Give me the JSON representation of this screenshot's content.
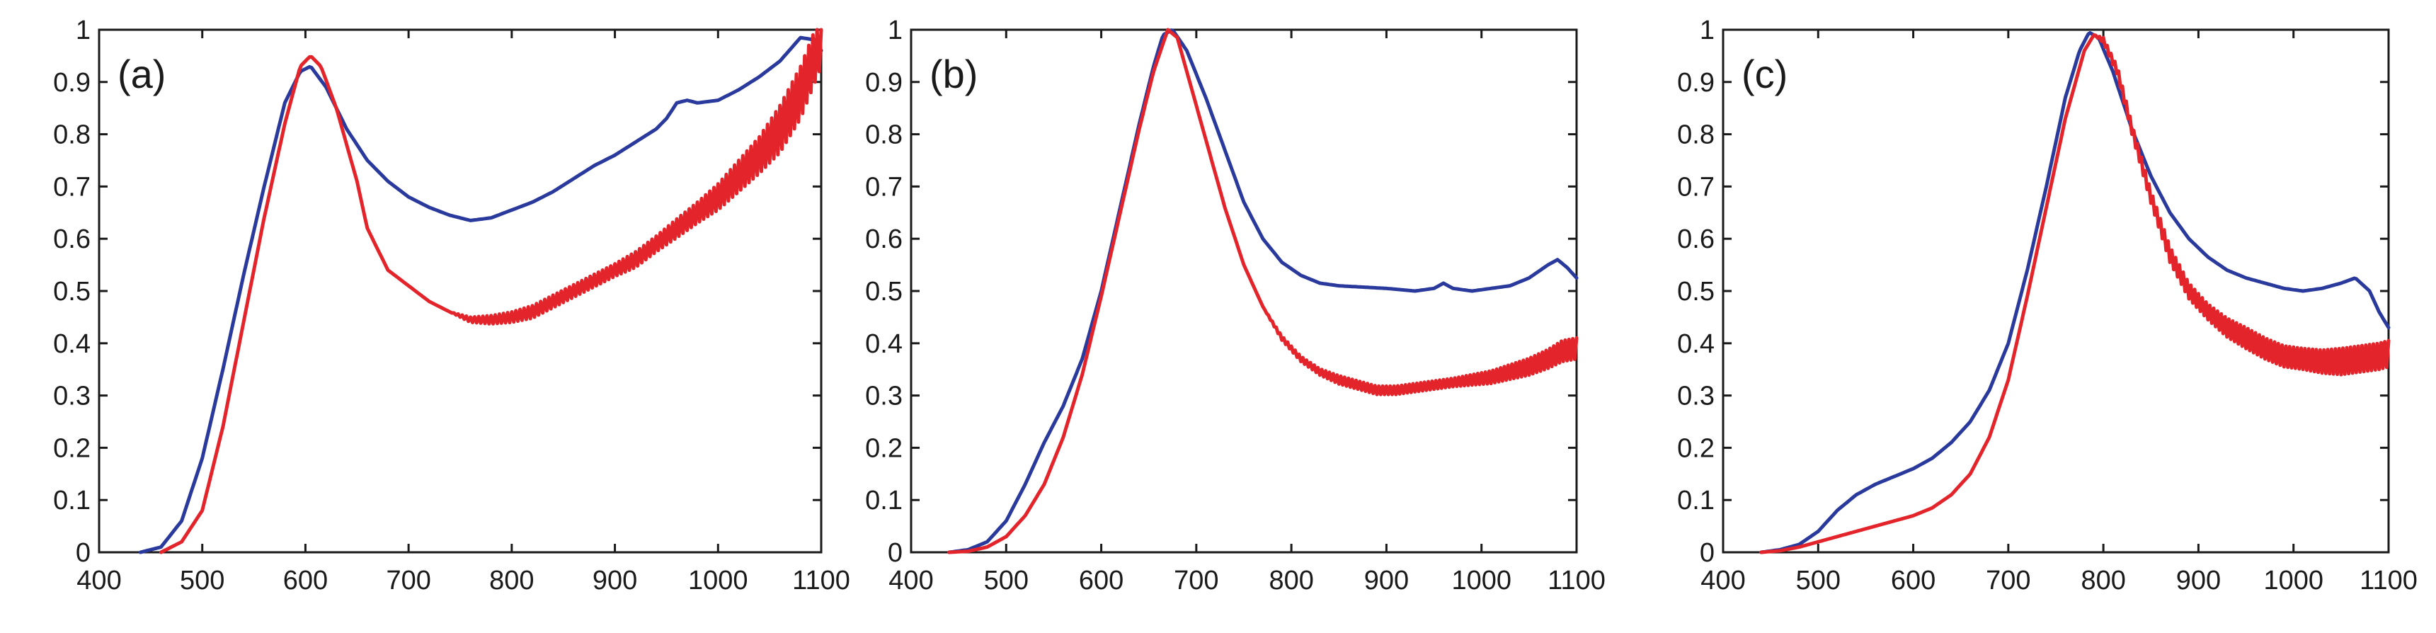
{
  "chart_data": [
    {
      "type": "line",
      "panel_label": "(a)",
      "title": "",
      "xlabel": "",
      "ylabel": "",
      "xlim": [
        400,
        1100
      ],
      "ylim": [
        0,
        1
      ],
      "x_ticks": [
        400,
        500,
        600,
        700,
        800,
        900,
        1000,
        1100
      ],
      "x_tick_labels": [
        "400",
        "500",
        "600",
        "700",
        "800",
        "900",
        "1000",
        "1100"
      ],
      "y_ticks": [
        0,
        0.1,
        0.2,
        0.3,
        0.4,
        0.5,
        0.6,
        0.7,
        0.8,
        0.9,
        1
      ],
      "y_tick_labels": [
        "0",
        "0.1",
        "0.2",
        "0.3",
        "0.4",
        "0.5",
        "0.6",
        "0.7",
        "0.8",
        "0.9",
        "1"
      ],
      "grid": false,
      "series": [
        {
          "name": "blue",
          "color": "#2a3a9c",
          "x": [
            440,
            460,
            480,
            500,
            520,
            540,
            560,
            580,
            595,
            605,
            620,
            640,
            660,
            680,
            700,
            720,
            740,
            760,
            780,
            800,
            820,
            840,
            860,
            880,
            900,
            920,
            940,
            950,
            960,
            970,
            980,
            1000,
            1020,
            1040,
            1060,
            1080,
            1095,
            1100
          ],
          "y": [
            0.0,
            0.01,
            0.06,
            0.18,
            0.35,
            0.53,
            0.7,
            0.86,
            0.92,
            0.93,
            0.89,
            0.81,
            0.75,
            0.71,
            0.68,
            0.66,
            0.645,
            0.635,
            0.64,
            0.655,
            0.67,
            0.69,
            0.715,
            0.74,
            0.76,
            0.785,
            0.81,
            0.83,
            0.86,
            0.865,
            0.86,
            0.865,
            0.885,
            0.91,
            0.94,
            0.985,
            0.98,
            0.96
          ]
        },
        {
          "name": "red",
          "color": "#e3242b",
          "x": [
            460,
            480,
            500,
            520,
            540,
            560,
            580,
            595,
            605,
            615,
            630,
            650,
            660,
            680,
            700,
            720,
            740,
            760,
            780,
            800,
            820,
            840,
            860,
            880,
            900,
            920,
            940,
            960,
            980,
            1000,
            1020,
            1040,
            1060,
            1080,
            1100
          ],
          "y": [
            0.0,
            0.02,
            0.08,
            0.24,
            0.44,
            0.64,
            0.82,
            0.93,
            0.95,
            0.93,
            0.85,
            0.71,
            0.62,
            0.54,
            0.51,
            0.48,
            0.46,
            0.445,
            0.445,
            0.45,
            0.46,
            0.48,
            0.5,
            0.52,
            0.54,
            0.56,
            0.59,
            0.62,
            0.65,
            0.68,
            0.72,
            0.76,
            0.81,
            0.88,
            0.98
          ],
          "noise": [
            0,
            0,
            0,
            0,
            0,
            0,
            0,
            0,
            0,
            0,
            0,
            0,
            0,
            0,
            0,
            0,
            0,
            0.005,
            0.008,
            0.01,
            0.012,
            0.012,
            0.012,
            0.012,
            0.012,
            0.015,
            0.015,
            0.018,
            0.02,
            0.025,
            0.03,
            0.035,
            0.045,
            0.05,
            0.05
          ]
        }
      ]
    },
    {
      "type": "line",
      "panel_label": "(b)",
      "title": "",
      "xlabel": "",
      "ylabel": "",
      "xlim": [
        400,
        1100
      ],
      "ylim": [
        0,
        1
      ],
      "x_ticks": [
        400,
        500,
        600,
        700,
        800,
        900,
        1000,
        1100
      ],
      "x_tick_labels": [
        "400",
        "500",
        "600",
        "700",
        "800",
        "900",
        "1000",
        "1100"
      ],
      "y_ticks": [
        0,
        0.1,
        0.2,
        0.3,
        0.4,
        0.5,
        0.6,
        0.7,
        0.8,
        0.9,
        1
      ],
      "y_tick_labels": [
        "0",
        "0.1",
        "0.2",
        "0.3",
        "0.4",
        "0.5",
        "0.6",
        "0.7",
        "0.8",
        "0.9",
        "1"
      ],
      "grid": false,
      "series": [
        {
          "name": "blue",
          "color": "#2a3a9c",
          "x": [
            440,
            460,
            480,
            500,
            520,
            540,
            560,
            580,
            600,
            620,
            640,
            655,
            665,
            675,
            690,
            710,
            730,
            750,
            770,
            790,
            810,
            830,
            850,
            870,
            900,
            930,
            950,
            960,
            970,
            990,
            1010,
            1030,
            1050,
            1070,
            1080,
            1090,
            1100
          ],
          "y": [
            0.0,
            0.005,
            0.02,
            0.06,
            0.13,
            0.21,
            0.28,
            0.37,
            0.5,
            0.66,
            0.82,
            0.93,
            0.99,
            1.0,
            0.96,
            0.87,
            0.77,
            0.67,
            0.6,
            0.555,
            0.53,
            0.515,
            0.51,
            0.508,
            0.505,
            0.5,
            0.505,
            0.515,
            0.505,
            0.5,
            0.505,
            0.51,
            0.525,
            0.55,
            0.56,
            0.545,
            0.525
          ]
        },
        {
          "name": "red",
          "color": "#e3242b",
          "x": [
            440,
            460,
            480,
            500,
            520,
            540,
            560,
            580,
            600,
            620,
            640,
            655,
            670,
            680,
            690,
            710,
            730,
            750,
            770,
            790,
            810,
            830,
            850,
            870,
            890,
            910,
            930,
            950,
            970,
            990,
            1010,
            1030,
            1050,
            1070,
            1085,
            1100
          ],
          "y": [
            0.0,
            0.002,
            0.01,
            0.03,
            0.07,
            0.13,
            0.22,
            0.34,
            0.49,
            0.65,
            0.81,
            0.92,
            1.0,
            0.985,
            0.92,
            0.79,
            0.66,
            0.55,
            0.47,
            0.41,
            0.37,
            0.345,
            0.33,
            0.32,
            0.31,
            0.31,
            0.315,
            0.32,
            0.325,
            0.33,
            0.335,
            0.345,
            0.355,
            0.37,
            0.385,
            0.39
          ],
          "noise": [
            0,
            0,
            0,
            0,
            0,
            0,
            0,
            0,
            0,
            0,
            0,
            0,
            0,
            0,
            0,
            0,
            0,
            0,
            0,
            0.004,
            0.005,
            0.006,
            0.008,
            0.008,
            0.008,
            0.008,
            0.008,
            0.008,
            0.008,
            0.01,
            0.012,
            0.014,
            0.016,
            0.018,
            0.02,
            0.02
          ]
        }
      ]
    },
    {
      "type": "line",
      "panel_label": "(c)",
      "title": "",
      "xlabel": "",
      "ylabel": "",
      "xlim": [
        400,
        1100
      ],
      "ylim": [
        0,
        1
      ],
      "x_ticks": [
        400,
        500,
        600,
        700,
        800,
        900,
        1000,
        1100
      ],
      "x_tick_labels": [
        "400",
        "500",
        "600",
        "700",
        "800",
        "900",
        "1000",
        "1100"
      ],
      "y_ticks": [
        0,
        0.1,
        0.2,
        0.3,
        0.4,
        0.5,
        0.6,
        0.7,
        0.8,
        0.9,
        1
      ],
      "y_tick_labels": [
        "0",
        "0.1",
        "0.2",
        "0.3",
        "0.4",
        "0.5",
        "0.6",
        "0.7",
        "0.8",
        "0.9",
        "1"
      ],
      "grid": false,
      "series": [
        {
          "name": "blue",
          "color": "#2a3a9c",
          "x": [
            440,
            460,
            480,
            500,
            520,
            540,
            560,
            580,
            600,
            620,
            640,
            660,
            680,
            700,
            720,
            740,
            760,
            775,
            785,
            795,
            810,
            830,
            850,
            870,
            890,
            910,
            930,
            950,
            970,
            990,
            1010,
            1030,
            1050,
            1065,
            1080,
            1090,
            1100
          ],
          "y": [
            0.0,
            0.005,
            0.015,
            0.04,
            0.08,
            0.11,
            0.13,
            0.145,
            0.16,
            0.18,
            0.21,
            0.25,
            0.31,
            0.4,
            0.54,
            0.7,
            0.87,
            0.96,
            0.995,
            0.985,
            0.92,
            0.81,
            0.72,
            0.65,
            0.6,
            0.565,
            0.54,
            0.525,
            0.515,
            0.505,
            0.5,
            0.505,
            0.515,
            0.525,
            0.5,
            0.46,
            0.43
          ]
        },
        {
          "name": "red",
          "color": "#e3242b",
          "x": [
            440,
            460,
            480,
            500,
            520,
            540,
            560,
            580,
            600,
            620,
            640,
            660,
            680,
            700,
            720,
            740,
            760,
            780,
            790,
            800,
            815,
            830,
            850,
            870,
            890,
            910,
            930,
            950,
            970,
            990,
            1010,
            1030,
            1050,
            1070,
            1090,
            1100
          ],
          "y": [
            0.0,
            0.003,
            0.01,
            0.02,
            0.03,
            0.04,
            0.05,
            0.06,
            0.07,
            0.085,
            0.11,
            0.15,
            0.22,
            0.33,
            0.49,
            0.66,
            0.83,
            0.96,
            0.99,
            0.98,
            0.92,
            0.81,
            0.68,
            0.57,
            0.5,
            0.46,
            0.43,
            0.41,
            0.39,
            0.375,
            0.37,
            0.365,
            0.365,
            0.37,
            0.375,
            0.38
          ],
          "noise": [
            0,
            0,
            0,
            0,
            0,
            0,
            0,
            0,
            0,
            0,
            0,
            0,
            0,
            0,
            0,
            0,
            0,
            0,
            0,
            0.005,
            0.008,
            0.01,
            0.012,
            0.015,
            0.015,
            0.015,
            0.018,
            0.02,
            0.02,
            0.02,
            0.02,
            0.022,
            0.025,
            0.025,
            0.025,
            0.025
          ]
        }
      ]
    }
  ]
}
